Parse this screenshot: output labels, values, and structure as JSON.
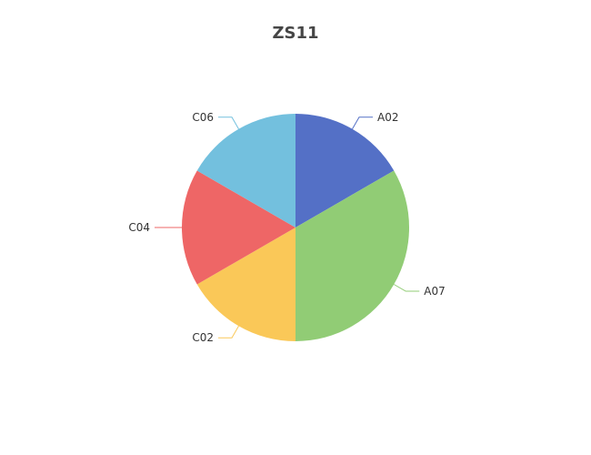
{
  "chart_data": {
    "type": "pie",
    "title": "ZS11",
    "categories": [
      "A02",
      "A07",
      "C02",
      "C04",
      "C06"
    ],
    "values": [
      1,
      2,
      1,
      1,
      1
    ],
    "colors": [
      "#5470c6",
      "#91cc75",
      "#fac858",
      "#ee6666",
      "#73c0de"
    ],
    "start_angle_deg": 90,
    "direction": "clockwise",
    "legend": "none"
  }
}
